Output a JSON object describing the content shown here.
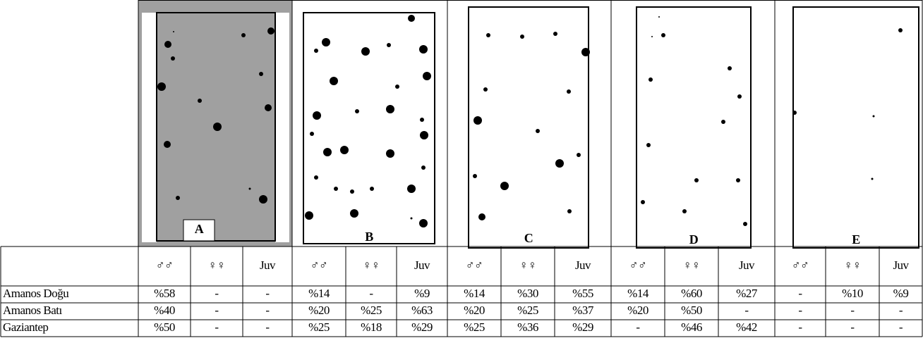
{
  "panels": [
    {
      "label": "A"
    },
    {
      "label": "B"
    },
    {
      "label": "C"
    },
    {
      "label": "D"
    },
    {
      "label": "E"
    }
  ],
  "table": {
    "header": [
      "♂♂",
      "♀♀",
      "Juv",
      "♂♂",
      "♀♀",
      "Juv",
      "♂♂",
      "♀♀",
      "Juv",
      "♂♂",
      "♀♀",
      "Juv",
      "♂♂",
      "♀♀",
      "Juv"
    ],
    "rows": [
      [
        "Amanos Doğu",
        "%58",
        "-",
        "-",
        "%14",
        "-",
        "%9",
        "%14",
        "%30",
        "%55",
        "%14",
        "%60",
        "%27",
        "-",
        "%10",
        "%9"
      ],
      [
        "Amanos Batı",
        "%40",
        "-",
        "-",
        "%20",
        "%25",
        "%63",
        "%20",
        "%25",
        "%37",
        "%20",
        "%50",
        "-",
        "-",
        "-",
        "-"
      ],
      [
        "Gaziantep",
        "%50",
        "-",
        "-",
        "%25",
        "%18",
        "%29",
        "%25",
        "%36",
        "%29",
        "-",
        "%46",
        "%42",
        "-",
        "-",
        "-"
      ]
    ]
  }
}
